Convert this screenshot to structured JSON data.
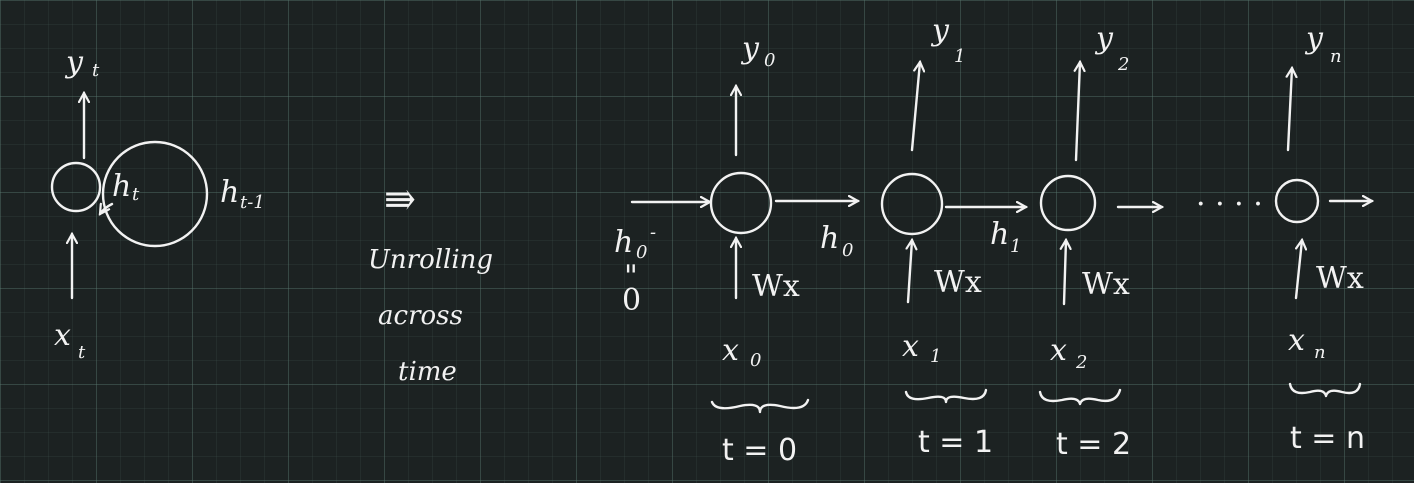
{
  "folded": {
    "output": "y",
    "output_sub": "t",
    "input": "x",
    "input_sub": "t",
    "hidden": "h",
    "hidden_sub": "t",
    "prev_hidden": "h",
    "prev_hidden_sub": "t-1"
  },
  "transition": {
    "arrow": "⇛",
    "line1": "Unrolling",
    "line2": "across",
    "line3": "time"
  },
  "unrolled": {
    "initial_state": "h",
    "initial_state_sub": "0",
    "initial_state_mark": "-",
    "initial_eq": "\"",
    "initial_value": "0",
    "dots": "· · · ·",
    "steps": [
      {
        "output": "y",
        "output_sub": "0",
        "input": "x",
        "input_sub": "0",
        "weight": "Wx",
        "state": "h",
        "state_sub": "0",
        "time": "t = 0"
      },
      {
        "output": "y",
        "output_sub": "1",
        "input": "x",
        "input_sub": "1",
        "weight": "Wx",
        "state": "h",
        "state_sub": "1",
        "time": "t = 1"
      },
      {
        "output": "y",
        "output_sub": "2",
        "input": "x",
        "input_sub": "2",
        "weight": "Wx",
        "state": "",
        "state_sub": "",
        "time": "t = 2"
      },
      {
        "output": "y",
        "output_sub": "n",
        "input": "x",
        "input_sub": "n",
        "weight": "Wx",
        "state": "",
        "state_sub": "",
        "time": "t = n"
      }
    ]
  }
}
